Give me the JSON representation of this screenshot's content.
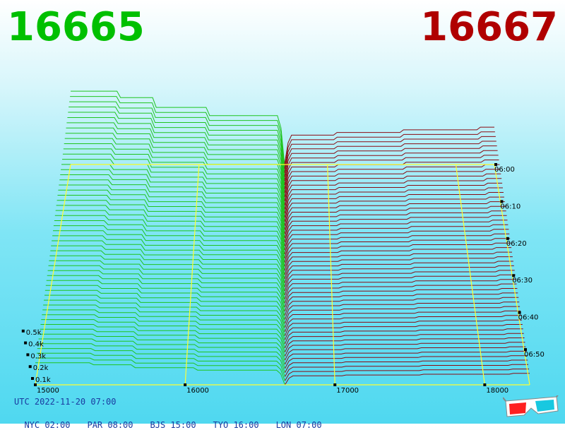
{
  "prices": {
    "bid": "16665",
    "ask": "16667"
  },
  "colors": {
    "bid": "#00c000",
    "ask": "#b00000",
    "bid_line": "#1fc41f",
    "ask_line": "#8b0a12",
    "grid": "#ffff33",
    "text": "#1a3aa0"
  },
  "footer": {
    "utc": "UTC 2022-11-20 07:00",
    "cities": [
      "NYC 02:00",
      "PAR 08:00",
      "BJS 15:00",
      "TYO 16:00",
      "LON 07:00"
    ]
  },
  "chart_data": {
    "type": "area",
    "x_ticks": [
      15000,
      16000,
      17000,
      18000
    ],
    "x_tick_labels": [
      "15000",
      "16000",
      "17000",
      "18000"
    ],
    "x_range": [
      15000,
      18300
    ],
    "mid_price": 16666,
    "volume_ticks": [
      "0.1k",
      "0.2k",
      "0.3k",
      "0.4k",
      "0.5k"
    ],
    "volume_range": [
      0,
      500
    ],
    "time_ticks": [
      "06:00",
      "06:10",
      "06:20",
      "06:30",
      "06:40",
      "06:50"
    ],
    "grid": true,
    "series": [
      {
        "name": "16665",
        "side": "bid"
      },
      {
        "name": "16667",
        "side": "ask"
      }
    ]
  },
  "icons": {
    "glasses": "3d-glasses-icon"
  }
}
